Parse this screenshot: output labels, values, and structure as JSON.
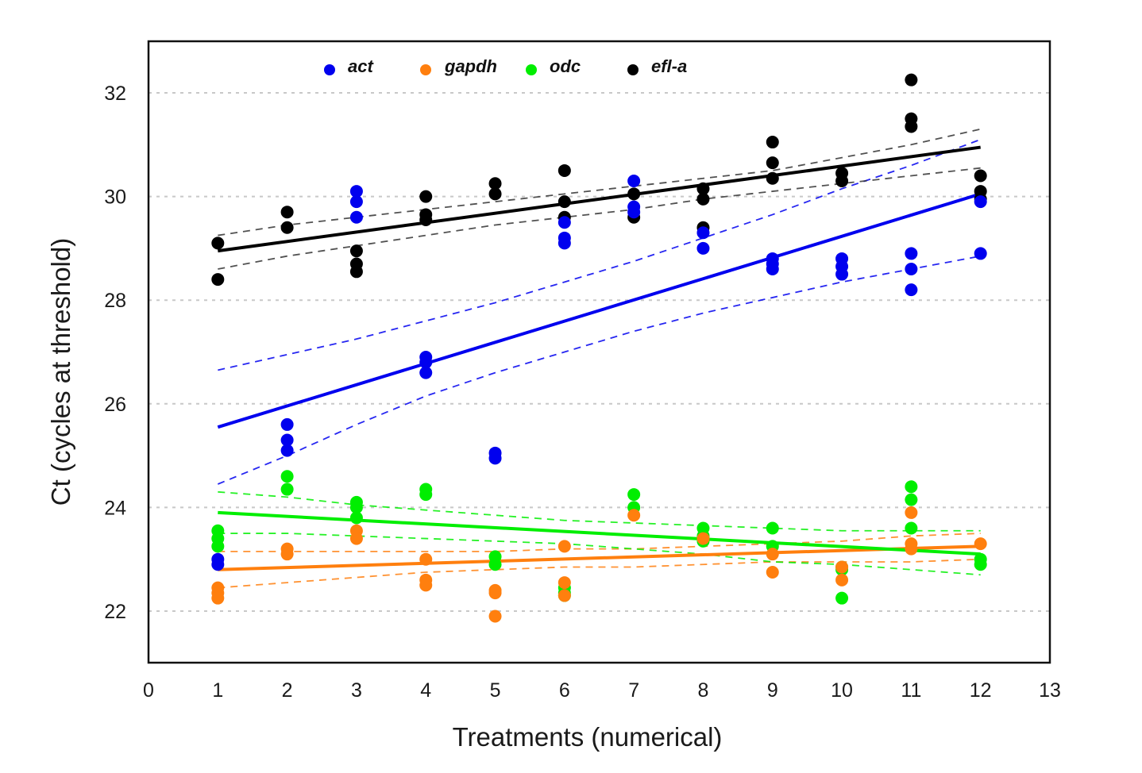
{
  "chart_data": {
    "type": "scatter",
    "title": "",
    "xlabel": "Treatments (numerical)",
    "ylabel": "Ct (cycles at threshold)",
    "xlim": [
      0,
      13
    ],
    "ylim": [
      21,
      33
    ],
    "xticks": [
      0,
      1,
      2,
      3,
      4,
      5,
      6,
      7,
      8,
      9,
      10,
      11,
      12,
      13
    ],
    "yticks": [
      22,
      24,
      26,
      28,
      30,
      32
    ],
    "grid": "horizontal dotted at y ticks",
    "legend_placement": "top-left inside plot",
    "series": [
      {
        "name": "act",
        "color": "#0000ee",
        "points": [
          [
            1,
            23.0
          ],
          [
            1,
            22.9
          ],
          [
            2,
            25.6
          ],
          [
            2,
            25.3
          ],
          [
            2,
            25.1
          ],
          [
            3,
            30.1
          ],
          [
            3,
            29.9
          ],
          [
            3,
            29.6
          ],
          [
            4,
            26.9
          ],
          [
            4,
            26.8
          ],
          [
            4,
            26.6
          ],
          [
            5,
            25.05
          ],
          [
            5,
            24.95
          ],
          [
            6,
            29.5
          ],
          [
            6,
            29.2
          ],
          [
            6,
            29.1
          ],
          [
            7,
            30.3
          ],
          [
            7,
            29.8
          ],
          [
            7,
            29.7
          ],
          [
            8,
            29.3
          ],
          [
            8,
            29.0
          ],
          [
            9,
            28.8
          ],
          [
            9,
            28.7
          ],
          [
            9,
            28.6
          ],
          [
            10,
            28.8
          ],
          [
            10,
            28.65
          ],
          [
            10,
            28.5
          ],
          [
            11,
            28.9
          ],
          [
            11,
            28.6
          ],
          [
            11,
            28.2
          ],
          [
            12,
            29.9
          ],
          [
            12,
            28.9
          ]
        ],
        "fit": {
          "x": [
            1,
            12
          ],
          "y": [
            25.55,
            30.05
          ]
        },
        "ci_upper": {
          "x": [
            1,
            2,
            3,
            4,
            5,
            6,
            7,
            8,
            9,
            10,
            11,
            12
          ],
          "y": [
            26.65,
            26.95,
            27.25,
            27.6,
            27.95,
            28.35,
            28.75,
            29.2,
            29.65,
            30.15,
            30.6,
            31.1
          ]
        },
        "ci_lower": {
          "x": [
            1,
            2,
            3,
            4,
            5,
            6,
            7,
            8,
            9,
            10,
            11,
            12
          ],
          "y": [
            24.45,
            25.0,
            25.6,
            26.15,
            26.6,
            27.0,
            27.4,
            27.75,
            28.05,
            28.35,
            28.6,
            28.85
          ]
        }
      },
      {
        "name": "gapdh",
        "color": "#ff7f0e",
        "points": [
          [
            1,
            22.45
          ],
          [
            1,
            22.35
          ],
          [
            1,
            22.25
          ],
          [
            2,
            23.2
          ],
          [
            2,
            23.1
          ],
          [
            3,
            23.55
          ],
          [
            3,
            23.4
          ],
          [
            4,
            23.0
          ],
          [
            4,
            22.6
          ],
          [
            4,
            22.5
          ],
          [
            5,
            22.4
          ],
          [
            5,
            22.35
          ],
          [
            5,
            21.9
          ],
          [
            6,
            23.25
          ],
          [
            6,
            22.55
          ],
          [
            6,
            22.3
          ],
          [
            7,
            23.85
          ],
          [
            8,
            23.4
          ],
          [
            9,
            23.1
          ],
          [
            9,
            22.75
          ],
          [
            10,
            22.85
          ],
          [
            10,
            22.6
          ],
          [
            11,
            23.9
          ],
          [
            11,
            23.3
          ],
          [
            11,
            23.2
          ],
          [
            12,
            23.3
          ]
        ],
        "fit": {
          "x": [
            1,
            12
          ],
          "y": [
            22.8,
            23.25
          ]
        },
        "ci_upper": {
          "x": [
            1,
            2,
            3,
            4,
            5,
            6,
            7,
            8,
            9,
            10,
            11,
            12
          ],
          "y": [
            23.15,
            23.15,
            23.15,
            23.15,
            23.15,
            23.2,
            23.2,
            23.25,
            23.3,
            23.35,
            23.45,
            23.5
          ]
        },
        "ci_lower": {
          "x": [
            1,
            2,
            3,
            4,
            5,
            6,
            7,
            8,
            9,
            10,
            11,
            12
          ],
          "y": [
            22.45,
            22.55,
            22.65,
            22.75,
            22.8,
            22.85,
            22.85,
            22.9,
            22.95,
            22.95,
            22.95,
            23.0
          ]
        }
      },
      {
        "name": "odc",
        "color": "#00ee00",
        "points": [
          [
            1,
            23.55
          ],
          [
            1,
            23.4
          ],
          [
            1,
            23.25
          ],
          [
            2,
            24.6
          ],
          [
            2,
            24.35
          ],
          [
            3,
            24.1
          ],
          [
            3,
            24.0
          ],
          [
            3,
            23.8
          ],
          [
            4,
            24.35
          ],
          [
            4,
            24.25
          ],
          [
            5,
            23.05
          ],
          [
            5,
            22.9
          ],
          [
            6,
            22.45
          ],
          [
            6,
            22.35
          ],
          [
            6,
            22.3
          ],
          [
            7,
            24.25
          ],
          [
            7,
            24.0
          ],
          [
            8,
            23.6
          ],
          [
            8,
            23.45
          ],
          [
            8,
            23.35
          ],
          [
            9,
            23.6
          ],
          [
            9,
            23.25
          ],
          [
            10,
            22.85
          ],
          [
            10,
            22.8
          ],
          [
            10,
            22.25
          ],
          [
            11,
            24.4
          ],
          [
            11,
            24.15
          ],
          [
            11,
            23.6
          ],
          [
            12,
            23.0
          ],
          [
            12,
            22.9
          ]
        ],
        "fit": {
          "x": [
            1,
            12
          ],
          "y": [
            23.9,
            23.1
          ]
        },
        "ci_upper": {
          "x": [
            1,
            2,
            3,
            4,
            5,
            6,
            7,
            8,
            9,
            10,
            11,
            12
          ],
          "y": [
            24.3,
            24.2,
            24.05,
            23.95,
            23.85,
            23.75,
            23.7,
            23.65,
            23.6,
            23.55,
            23.55,
            23.55
          ]
        },
        "ci_lower": {
          "x": [
            1,
            2,
            3,
            4,
            5,
            6,
            7,
            8,
            9,
            10,
            11,
            12
          ],
          "y": [
            23.5,
            23.5,
            23.45,
            23.4,
            23.35,
            23.3,
            23.2,
            23.1,
            22.95,
            22.9,
            22.8,
            22.7
          ]
        }
      },
      {
        "name": "efl-a",
        "color": "#000000",
        "points": [
          [
            1,
            29.1
          ],
          [
            1,
            28.4
          ],
          [
            2,
            29.7
          ],
          [
            2,
            29.4
          ],
          [
            3,
            28.95
          ],
          [
            3,
            28.7
          ],
          [
            3,
            28.55
          ],
          [
            4,
            30.0
          ],
          [
            4,
            29.65
          ],
          [
            4,
            29.55
          ],
          [
            5,
            30.25
          ],
          [
            5,
            30.05
          ],
          [
            6,
            30.5
          ],
          [
            6,
            29.9
          ],
          [
            6,
            29.6
          ],
          [
            7,
            30.05
          ],
          [
            7,
            29.6
          ],
          [
            8,
            30.15
          ],
          [
            8,
            29.95
          ],
          [
            8,
            29.4
          ],
          [
            9,
            31.05
          ],
          [
            9,
            30.65
          ],
          [
            9,
            30.35
          ],
          [
            10,
            30.45
          ],
          [
            10,
            30.3
          ],
          [
            11,
            32.25
          ],
          [
            11,
            31.5
          ],
          [
            11,
            31.35
          ],
          [
            12,
            30.4
          ],
          [
            12,
            30.1
          ],
          [
            12,
            29.95
          ]
        ],
        "fit": {
          "x": [
            1,
            12
          ],
          "y": [
            28.95,
            30.95
          ]
        },
        "ci_upper": {
          "x": [
            1,
            2,
            3,
            4,
            5,
            6,
            7,
            8,
            9,
            10,
            11,
            12
          ],
          "y": [
            29.25,
            29.45,
            29.6,
            29.75,
            29.9,
            30.05,
            30.2,
            30.35,
            30.5,
            30.75,
            31.0,
            31.3
          ]
        },
        "ci_lower": {
          "x": [
            1,
            2,
            3,
            4,
            5,
            6,
            7,
            8,
            9,
            10,
            11,
            12
          ],
          "y": [
            28.6,
            28.85,
            29.05,
            29.25,
            29.45,
            29.6,
            29.75,
            29.95,
            30.1,
            30.25,
            30.4,
            30.55
          ]
        }
      }
    ]
  }
}
